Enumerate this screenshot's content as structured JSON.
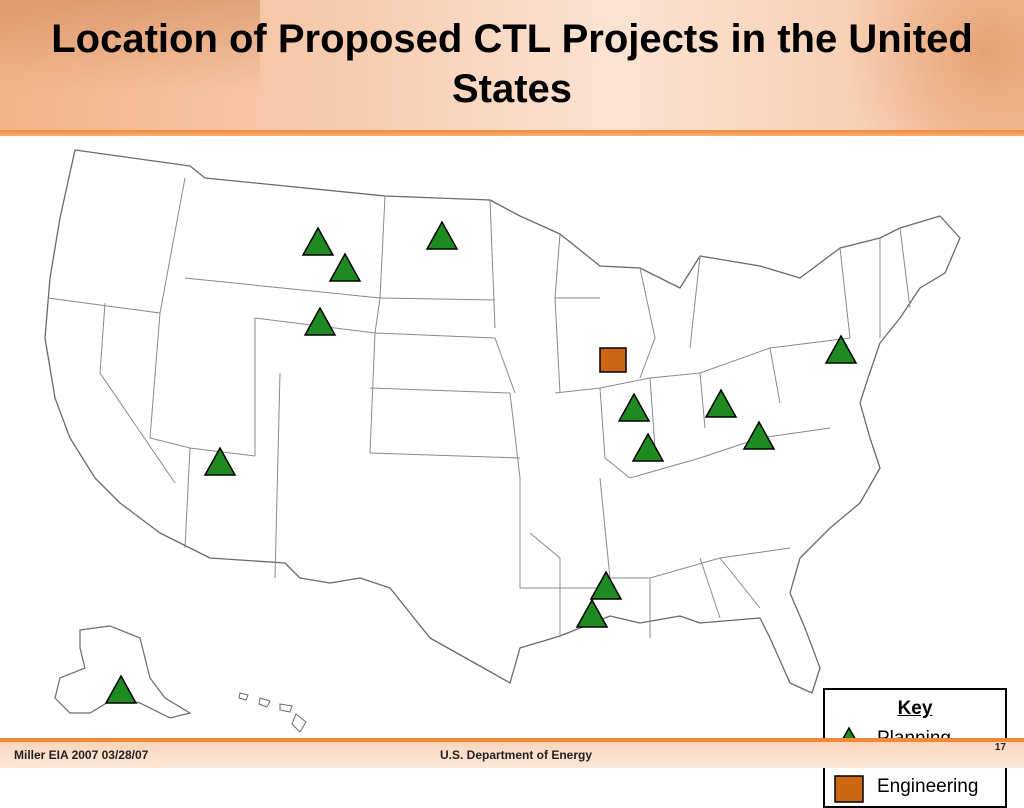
{
  "title": "Location of Proposed CTL Projects in the United States",
  "colors": {
    "planning": "#1f8a1f",
    "engineering": "#cc6610",
    "accent": "#f08a3a"
  },
  "key": {
    "title": "Key",
    "items": [
      {
        "label": "Planning",
        "symbol": "triangle"
      },
      {
        "label": "Engineering",
        "symbol": "square"
      }
    ]
  },
  "projects": [
    {
      "state": "Montana",
      "status": "Planning"
    },
    {
      "state": "Montana",
      "status": "Planning"
    },
    {
      "state": "North Dakota",
      "status": "Planning"
    },
    {
      "state": "Wyoming",
      "status": "Planning"
    },
    {
      "state": "Arizona",
      "status": "Planning"
    },
    {
      "state": "Illinois",
      "status": "Engineering"
    },
    {
      "state": "Illinois",
      "status": "Planning"
    },
    {
      "state": "Illinois",
      "status": "Planning"
    },
    {
      "state": "Ohio",
      "status": "Planning"
    },
    {
      "state": "West Virginia",
      "status": "Planning"
    },
    {
      "state": "Pennsylvania",
      "status": "Planning"
    },
    {
      "state": "Mississippi",
      "status": "Planning"
    },
    {
      "state": "Louisiana",
      "status": "Planning"
    },
    {
      "state": "Alaska",
      "status": "Planning"
    }
  ],
  "footer": {
    "left": "Miller  EIA 2007   03/28/07",
    "center": "U.S. Department of Energy",
    "page": "17"
  }
}
